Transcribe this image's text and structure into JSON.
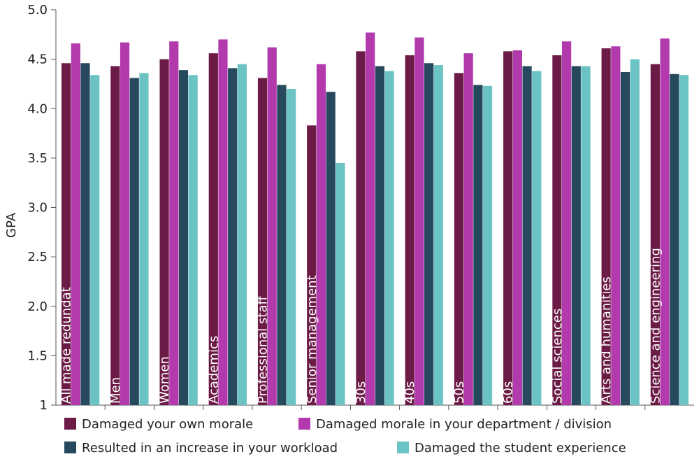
{
  "chart_data": {
    "type": "bar",
    "ylabel": "GPA",
    "ylim": [
      1,
      5
    ],
    "yticks": [
      "1",
      "1.5",
      "2.0",
      "2.5",
      "3.0",
      "3.5",
      "4.0",
      "4.5",
      "5.0"
    ],
    "ytick_values": [
      1,
      1.5,
      2,
      2.5,
      3,
      3.5,
      4,
      4.5,
      5
    ],
    "grid": false,
    "legend_position": "bottom",
    "categories": [
      "All made redundat",
      "Men",
      "Women",
      "Academics",
      "Professional staff",
      "Senior management",
      "30s",
      "40s",
      "50s",
      "60s",
      "Social sciences",
      "Arts and humanities",
      "Science and engineering"
    ],
    "series": [
      {
        "name": "Damaged your own morale",
        "color": "#6b1b45",
        "values": [
          4.46,
          4.43,
          4.5,
          4.56,
          4.31,
          3.83,
          4.58,
          4.54,
          4.36,
          4.58,
          4.54,
          4.61,
          4.45
        ]
      },
      {
        "name": "Damaged morale in your department / division",
        "color": "#b23aad",
        "values": [
          4.66,
          4.67,
          4.68,
          4.7,
          4.62,
          4.45,
          4.77,
          4.72,
          4.56,
          4.59,
          4.68,
          4.63,
          4.71
        ]
      },
      {
        "name": "Resulted in an increase in your workload",
        "color": "#27495e",
        "values": [
          4.46,
          4.31,
          4.39,
          4.41,
          4.24,
          4.17,
          4.43,
          4.46,
          4.24,
          4.43,
          4.43,
          4.37,
          4.35
        ]
      },
      {
        "name": "Damaged the student experience",
        "color": "#6cc3c3",
        "values": [
          4.34,
          4.36,
          4.34,
          4.45,
          4.2,
          3.45,
          4.38,
          4.44,
          4.23,
          4.38,
          4.43,
          4.5,
          4.34
        ]
      }
    ]
  }
}
